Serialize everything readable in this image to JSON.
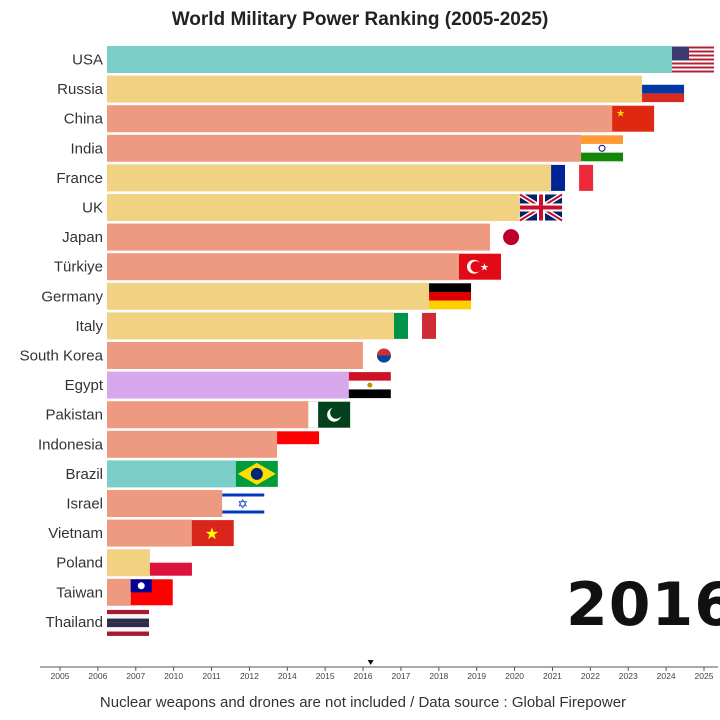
{
  "chart_data": {
    "type": "bar",
    "title": "World Military Power Ranking (2005-2025)",
    "current_year": "2016",
    "footer": "Nuclear weapons and drones are not included / Data source : Global Firepower",
    "categories": [
      "USA",
      "Russia",
      "China",
      "India",
      "France",
      "UK",
      "Japan",
      "Türkiye",
      "Germany",
      "Italy",
      "South Korea",
      "Egypt",
      "Pakistan",
      "Indonesia",
      "Brazil",
      "Israel",
      "Vietnam",
      "Poland",
      "Taiwan",
      "Thailand"
    ],
    "values": [
      100,
      94.7,
      89.4,
      83.9,
      78.6,
      73.1,
      67.8,
      62.3,
      57.0,
      50.8,
      45.3,
      42.8,
      35.6,
      30.1,
      22.8,
      20.4,
      15.0,
      7.6,
      4.2,
      0
    ],
    "value_unit": "relative bar length (% of leader), no axis shown",
    "colors": [
      "#7ccfc8",
      "#f0d282",
      "#ee9a80",
      "#ee9a80",
      "#f0d282",
      "#f0d282",
      "#ee9a80",
      "#ee9a80",
      "#f0d282",
      "#f0d282",
      "#ee9a80",
      "#d8a8ec",
      "#ee9a80",
      "#ee9a80",
      "#7ccfc8",
      "#ee9a80",
      "#ee9a80",
      "#f0d282",
      "#ee9a80",
      "#ee9a80"
    ],
    "flags": [
      "us",
      "ru",
      "cn",
      "in",
      "fr",
      "uk",
      "jp",
      "tr",
      "de",
      "it",
      "kr",
      "eg",
      "pk",
      "id",
      "br",
      "il",
      "vn",
      "pl",
      "tw",
      "th"
    ],
    "timeline": {
      "ticks": [
        "2005",
        "2006",
        "2007",
        "2010",
        "2011",
        "2012",
        "2014",
        "2015",
        "2016",
        "2017",
        "2018",
        "2019",
        "2020",
        "2021",
        "2022",
        "2023",
        "2024",
        "2025"
      ],
      "position": 2016.2
    },
    "xlabel": "",
    "ylabel": ""
  }
}
